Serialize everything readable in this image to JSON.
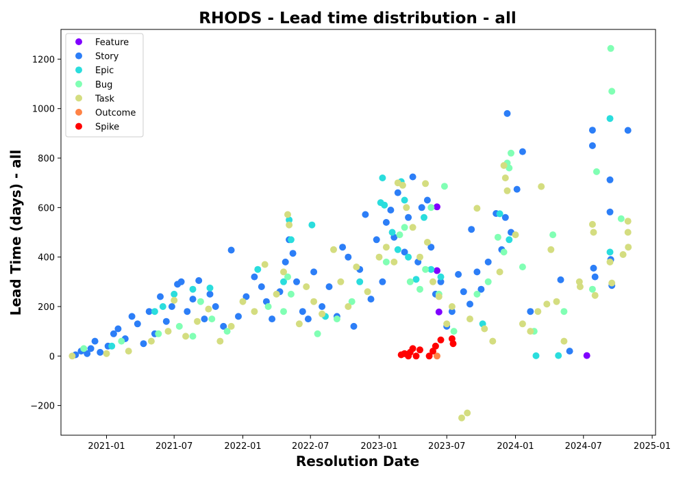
{
  "chart_data": {
    "type": "scatter",
    "title": "RHODS - Lead time distribution - all",
    "xlabel": "Resolution Date",
    "ylabel": "Lead Time (days) - all",
    "xlim": [
      "2020-09-01",
      "2025-01-10"
    ],
    "ylim": [
      -320,
      1320
    ],
    "xticks": [
      "2021-01",
      "2021-07",
      "2022-01",
      "2022-07",
      "2023-01",
      "2023-07",
      "2024-01",
      "2024-07",
      "2025-01"
    ],
    "yticks": [
      -200,
      0,
      200,
      400,
      600,
      800,
      1000,
      1200
    ],
    "grid": false,
    "legend_position": "top-left",
    "series": [
      {
        "name": "Feature",
        "color": "#8000ff",
        "points": [
          [
            "2023-06-05",
            603
          ],
          [
            "2023-06-05",
            345
          ],
          [
            "2023-06-10",
            178
          ],
          [
            "2024-07-10",
            2
          ]
        ]
      },
      {
        "name": "Story",
        "color": "#2c7ef7",
        "points": [
          [
            "2020-10-10",
            5
          ],
          [
            "2020-10-25",
            20
          ],
          [
            "2020-11-10",
            10
          ],
          [
            "2020-11-20",
            30
          ],
          [
            "2020-12-01",
            60
          ],
          [
            "2020-12-15",
            15
          ],
          [
            "2021-01-05",
            40
          ],
          [
            "2021-01-20",
            90
          ],
          [
            "2021-02-01",
            110
          ],
          [
            "2021-02-20",
            70
          ],
          [
            "2021-03-10",
            160
          ],
          [
            "2021-03-25",
            130
          ],
          [
            "2021-04-10",
            50
          ],
          [
            "2021-04-25",
            180
          ],
          [
            "2021-05-10",
            90
          ],
          [
            "2021-05-25",
            240
          ],
          [
            "2021-06-10",
            140
          ],
          [
            "2021-06-25",
            200
          ],
          [
            "2021-07-10",
            290
          ],
          [
            "2021-07-20",
            300
          ],
          [
            "2021-08-05",
            180
          ],
          [
            "2021-08-20",
            230
          ],
          [
            "2021-09-05",
            305
          ],
          [
            "2021-09-20",
            150
          ],
          [
            "2021-10-05",
            250
          ],
          [
            "2021-10-20",
            200
          ],
          [
            "2021-11-10",
            120
          ],
          [
            "2021-12-01",
            428
          ],
          [
            "2021-12-20",
            160
          ],
          [
            "2022-01-10",
            240
          ],
          [
            "2022-02-01",
            320
          ],
          [
            "2022-02-20",
            280
          ],
          [
            "2022-03-05",
            220
          ],
          [
            "2022-03-20",
            150
          ],
          [
            "2022-04-10",
            260
          ],
          [
            "2022-04-25",
            380
          ],
          [
            "2022-05-05",
            470
          ],
          [
            "2022-05-15",
            415
          ],
          [
            "2022-05-25",
            300
          ],
          [
            "2022-06-10",
            180
          ],
          [
            "2022-06-25",
            150
          ],
          [
            "2022-07-10",
            340
          ],
          [
            "2022-08-01",
            200
          ],
          [
            "2022-08-20",
            280
          ],
          [
            "2022-09-10",
            160
          ],
          [
            "2022-09-25",
            440
          ],
          [
            "2022-10-10",
            400
          ],
          [
            "2022-10-25",
            120
          ],
          [
            "2022-11-10",
            350
          ],
          [
            "2022-11-25",
            572
          ],
          [
            "2022-12-10",
            230
          ],
          [
            "2022-12-25",
            470
          ],
          [
            "2023-01-10",
            300
          ],
          [
            "2023-01-20",
            540
          ],
          [
            "2023-02-01",
            590
          ],
          [
            "2023-02-10",
            480
          ],
          [
            "2023-02-20",
            660
          ],
          [
            "2023-03-01",
            700
          ],
          [
            "2023-03-10",
            420
          ],
          [
            "2023-03-20",
            560
          ],
          [
            "2023-04-01",
            724
          ],
          [
            "2023-04-15",
            380
          ],
          [
            "2023-04-25",
            600
          ],
          [
            "2023-05-10",
            630
          ],
          [
            "2023-05-20",
            440
          ],
          [
            "2023-06-01",
            250
          ],
          [
            "2023-06-15",
            300
          ],
          [
            "2023-07-01",
            120
          ],
          [
            "2023-07-15",
            180
          ],
          [
            "2023-08-01",
            330
          ],
          [
            "2023-08-15",
            260
          ],
          [
            "2023-09-01",
            210
          ],
          [
            "2023-09-05",
            512
          ],
          [
            "2023-09-20",
            340
          ],
          [
            "2023-10-01",
            270
          ],
          [
            "2023-10-20",
            380
          ],
          [
            "2023-11-10",
            576
          ],
          [
            "2023-11-25",
            430
          ],
          [
            "2023-12-05",
            560
          ],
          [
            "2023-12-10",
            980
          ],
          [
            "2023-12-20",
            500
          ],
          [
            "2024-01-05",
            674
          ],
          [
            "2024-01-20",
            826
          ],
          [
            "2024-02-10",
            180
          ],
          [
            "2024-05-01",
            308
          ],
          [
            "2024-05-25",
            20
          ],
          [
            "2024-07-25",
            913
          ],
          [
            "2024-07-25",
            850
          ],
          [
            "2024-07-28",
            355
          ],
          [
            "2024-08-01",
            320
          ],
          [
            "2024-09-10",
            712
          ],
          [
            "2024-09-10",
            582
          ],
          [
            "2024-09-12",
            390
          ],
          [
            "2024-09-15",
            285
          ],
          [
            "2024-10-28",
            912
          ]
        ]
      },
      {
        "name": "Epic",
        "color": "#2adddd",
        "points": [
          [
            "2021-01-15",
            40
          ],
          [
            "2021-05-10",
            180
          ],
          [
            "2021-06-01",
            200
          ],
          [
            "2021-07-01",
            250
          ],
          [
            "2021-08-20",
            270
          ],
          [
            "2021-10-05",
            275
          ],
          [
            "2022-02-10",
            350
          ],
          [
            "2022-04-20",
            300
          ],
          [
            "2022-05-05",
            550
          ],
          [
            "2022-05-10",
            470
          ],
          [
            "2022-07-05",
            530
          ],
          [
            "2022-08-10",
            160
          ],
          [
            "2022-11-10",
            300
          ],
          [
            "2023-01-05",
            620
          ],
          [
            "2023-01-10",
            720
          ],
          [
            "2023-01-15",
            610
          ],
          [
            "2023-02-05",
            500
          ],
          [
            "2023-02-20",
            430
          ],
          [
            "2023-03-01",
            705
          ],
          [
            "2023-03-10",
            630
          ],
          [
            "2023-03-20",
            400
          ],
          [
            "2023-04-10",
            310
          ],
          [
            "2023-05-01",
            560
          ],
          [
            "2023-05-20",
            350
          ],
          [
            "2023-06-15",
            320
          ],
          [
            "2023-10-05",
            130
          ],
          [
            "2023-11-20",
            575
          ],
          [
            "2023-12-15",
            470
          ],
          [
            "2024-02-25",
            1
          ],
          [
            "2024-04-25",
            2
          ],
          [
            "2024-09-10",
            960
          ],
          [
            "2024-09-10",
            420
          ]
        ]
      },
      {
        "name": "Bug",
        "color": "#81ffb4",
        "points": [
          [
            "2020-11-01",
            30
          ],
          [
            "2021-02-10",
            60
          ],
          [
            "2021-05-20",
            90
          ],
          [
            "2021-07-15",
            120
          ],
          [
            "2021-08-20",
            80
          ],
          [
            "2021-09-10",
            220
          ],
          [
            "2021-10-10",
            150
          ],
          [
            "2021-11-20",
            100
          ],
          [
            "2022-03-10",
            200
          ],
          [
            "2022-04-20",
            180
          ],
          [
            "2022-05-01",
            320
          ],
          [
            "2022-05-10",
            250
          ],
          [
            "2022-07-20",
            90
          ],
          [
            "2022-09-10",
            150
          ],
          [
            "2022-10-20",
            220
          ],
          [
            "2023-01-20",
            380
          ],
          [
            "2023-02-25",
            490
          ],
          [
            "2023-03-10",
            520
          ],
          [
            "2023-03-25",
            300
          ],
          [
            "2023-04-20",
            270
          ],
          [
            "2023-05-05",
            350
          ],
          [
            "2023-05-20",
            600
          ],
          [
            "2023-06-10",
            250
          ],
          [
            "2023-06-25",
            686
          ],
          [
            "2023-07-20",
            100
          ],
          [
            "2023-09-20",
            250
          ],
          [
            "2023-10-20",
            300
          ],
          [
            "2023-11-15",
            480
          ],
          [
            "2023-12-01",
            420
          ],
          [
            "2023-12-10",
            780
          ],
          [
            "2023-12-15",
            760
          ],
          [
            "2023-12-20",
            820
          ],
          [
            "2024-01-20",
            360
          ],
          [
            "2024-02-20",
            100
          ],
          [
            "2024-04-10",
            490
          ],
          [
            "2024-05-10",
            180
          ],
          [
            "2024-07-25",
            270
          ],
          [
            "2024-08-05",
            745
          ],
          [
            "2024-09-12",
            1243
          ],
          [
            "2024-09-15",
            1070
          ],
          [
            "2024-10-10",
            555
          ]
        ]
      },
      {
        "name": "Task",
        "color": "#d4dd80",
        "points": [
          [
            "2020-10-01",
            0
          ],
          [
            "2021-01-01",
            10
          ],
          [
            "2021-03-01",
            20
          ],
          [
            "2021-05-01",
            60
          ],
          [
            "2021-06-15",
            100
          ],
          [
            "2021-07-01",
            225
          ],
          [
            "2021-08-01",
            80
          ],
          [
            "2021-09-01",
            140
          ],
          [
            "2021-10-01",
            190
          ],
          [
            "2021-11-01",
            60
          ],
          [
            "2021-12-01",
            120
          ],
          [
            "2022-01-01",
            220
          ],
          [
            "2022-02-01",
            180
          ],
          [
            "2022-03-01",
            370
          ],
          [
            "2022-04-01",
            250
          ],
          [
            "2022-04-20",
            340
          ],
          [
            "2022-05-01",
            572
          ],
          [
            "2022-05-05",
            530
          ],
          [
            "2022-06-01",
            130
          ],
          [
            "2022-06-20",
            280
          ],
          [
            "2022-07-10",
            220
          ],
          [
            "2022-08-01",
            170
          ],
          [
            "2022-09-01",
            430
          ],
          [
            "2022-09-20",
            300
          ],
          [
            "2022-10-10",
            200
          ],
          [
            "2022-11-01",
            360
          ],
          [
            "2022-12-01",
            260
          ],
          [
            "2023-01-01",
            400
          ],
          [
            "2023-01-20",
            440
          ],
          [
            "2023-02-10",
            380
          ],
          [
            "2023-02-20",
            700
          ],
          [
            "2023-03-05",
            690
          ],
          [
            "2023-03-15",
            600
          ],
          [
            "2023-04-01",
            520
          ],
          [
            "2023-04-20",
            400
          ],
          [
            "2023-05-05",
            697
          ],
          [
            "2023-05-10",
            460
          ],
          [
            "2023-05-25",
            300
          ],
          [
            "2023-06-10",
            240
          ],
          [
            "2023-07-01",
            130
          ],
          [
            "2023-07-15",
            200
          ],
          [
            "2023-08-10",
            -250
          ],
          [
            "2023-08-25",
            -230
          ],
          [
            "2023-09-01",
            150
          ],
          [
            "2023-09-20",
            597
          ],
          [
            "2023-10-10",
            110
          ],
          [
            "2023-11-01",
            60
          ],
          [
            "2023-11-20",
            340
          ],
          [
            "2023-12-01",
            770
          ],
          [
            "2023-12-05",
            720
          ],
          [
            "2023-12-10",
            668
          ],
          [
            "2024-01-01",
            490
          ],
          [
            "2024-01-20",
            130
          ],
          [
            "2024-02-10",
            100
          ],
          [
            "2024-03-01",
            180
          ],
          [
            "2024-03-10",
            685
          ],
          [
            "2024-03-25",
            210
          ],
          [
            "2024-04-05",
            430
          ],
          [
            "2024-04-20",
            220
          ],
          [
            "2024-05-10",
            60
          ],
          [
            "2024-06-20",
            300
          ],
          [
            "2024-06-22",
            280
          ],
          [
            "2024-07-25",
            532
          ],
          [
            "2024-07-28",
            500
          ],
          [
            "2024-08-01",
            245
          ],
          [
            "2024-09-10",
            380
          ],
          [
            "2024-09-15",
            295
          ],
          [
            "2024-10-15",
            410
          ],
          [
            "2024-10-28",
            545
          ],
          [
            "2024-10-28",
            500
          ],
          [
            "2024-10-29",
            440
          ]
        ]
      },
      {
        "name": "Outcome",
        "color": "#ff8346",
        "points": [
          [
            "2023-06-05",
            0
          ]
        ]
      },
      {
        "name": "Spike",
        "color": "#ff0000",
        "points": [
          [
            "2023-03-01",
            5
          ],
          [
            "2023-03-10",
            10
          ],
          [
            "2023-03-20",
            0
          ],
          [
            "2023-03-25",
            15
          ],
          [
            "2023-04-01",
            30
          ],
          [
            "2023-04-10",
            0
          ],
          [
            "2023-04-20",
            25
          ],
          [
            "2023-05-15",
            0
          ],
          [
            "2023-05-25",
            20
          ],
          [
            "2023-06-01",
            40
          ],
          [
            "2023-06-15",
            65
          ],
          [
            "2023-07-15",
            70
          ],
          [
            "2023-07-18",
            50
          ]
        ]
      }
    ]
  }
}
